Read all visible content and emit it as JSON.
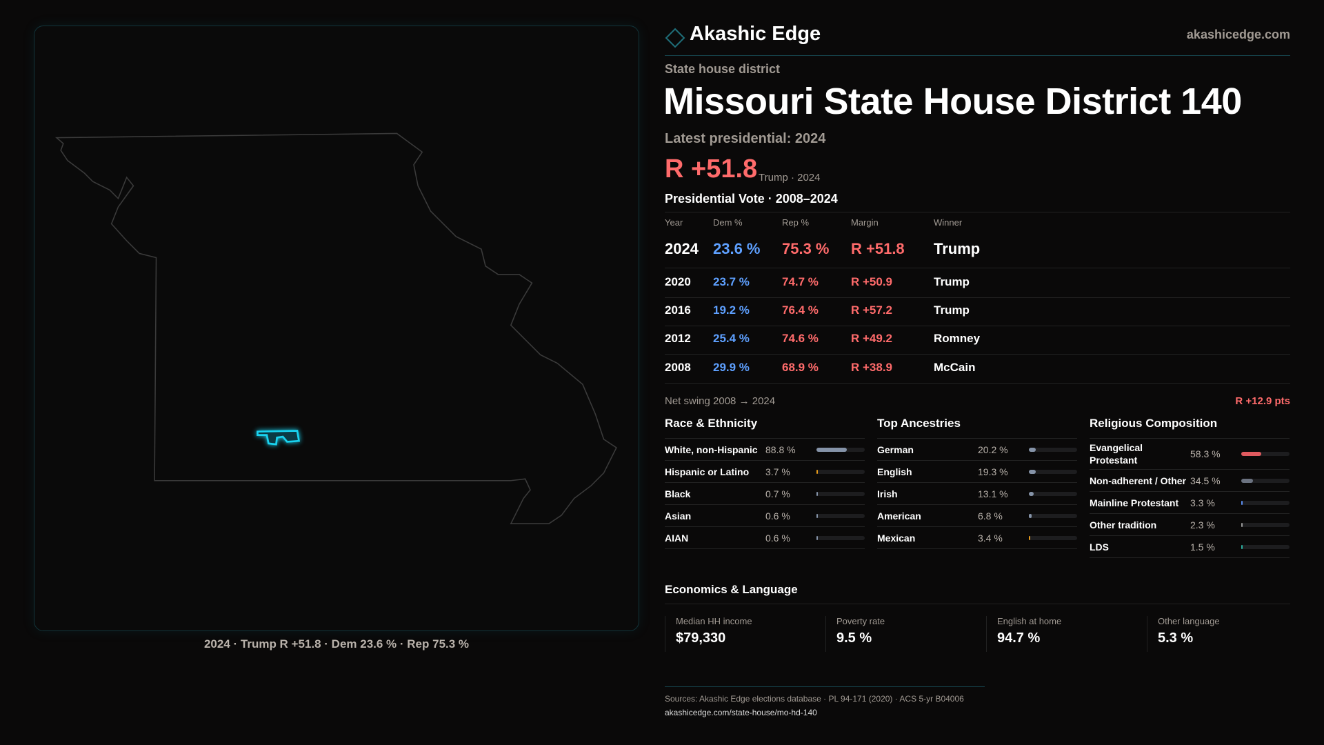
{
  "brand": {
    "name": "Akashic Edge",
    "site": "akashicedge.com",
    "accent": "#2bb6c9"
  },
  "header": {
    "kicker": "State house district",
    "title": "Missouri State House District 140",
    "latest_label": "Latest presidential: 2024",
    "margin": "R +51.8",
    "margin_sub": "Trump · 2024",
    "table_title": "Presidential Vote · 2008–2024"
  },
  "map": {
    "caption": "2024 · Trump R +51.8 · Dem 23.6 % · Rep 75.3 %",
    "district_color": "#19d3f0"
  },
  "table": {
    "headers": [
      "Year",
      "Dem %",
      "Rep %",
      "Margin",
      "Winner"
    ],
    "rows": [
      [
        "2024",
        "23.6 %",
        "75.3 %",
        "R +51.8",
        "Trump"
      ],
      [
        "2020",
        "23.7 %",
        "74.7 %",
        "R +50.9",
        "Trump"
      ],
      [
        "2016",
        "19.2 %",
        "76.4 %",
        "R +57.2",
        "Trump"
      ],
      [
        "2012",
        "25.4 %",
        "74.6 %",
        "R +49.2",
        "Romney"
      ],
      [
        "2008",
        "29.9 %",
        "68.9 %",
        "R +38.9",
        "McCain"
      ]
    ]
  },
  "swing": {
    "label": "Net swing 2008 → 2024",
    "value": "R +12.9 pts"
  },
  "sections": [
    {
      "title": "Race & Ethnicity",
      "rows": [
        {
          "label": "White, non-Hispanic",
          "pct": "88.8 %",
          "value": 88.8,
          "color": "#8593a8"
        },
        {
          "label": "Hispanic or Latino",
          "pct": "3.7 %",
          "value": 3.7,
          "color": "#e59a1c"
        },
        {
          "label": "Black",
          "pct": "0.7 %",
          "value": 0.7,
          "color": "#8593a8"
        },
        {
          "label": "Asian",
          "pct": "0.6 %",
          "value": 0.6,
          "color": "#8593a8"
        },
        {
          "label": "AIAN",
          "pct": "0.6 %",
          "value": 0.6,
          "color": "#8593a8"
        }
      ]
    },
    {
      "title": "Top Ancestries",
      "rows": [
        {
          "label": "German",
          "pct": "20.2 %",
          "value": 20.2,
          "color": "#8593a8"
        },
        {
          "label": "English",
          "pct": "19.3 %",
          "value": 19.3,
          "color": "#8593a8"
        },
        {
          "label": "Irish",
          "pct": "13.1 %",
          "value": 13.1,
          "color": "#8593a8"
        },
        {
          "label": "American",
          "pct": "6.8 %",
          "value": 6.8,
          "color": "#8593a8"
        },
        {
          "label": "Mexican",
          "pct": "3.4 %",
          "value": 3.4,
          "color": "#e59a1c"
        }
      ]
    },
    {
      "title": "Religious Composition",
      "rows": [
        {
          "label": "Evangelical Protestant",
          "pct": "58.3 %",
          "value": 58.3,
          "color": "#e05a5f"
        },
        {
          "label": "Non-adherent / Other",
          "pct": "34.5 %",
          "value": 34.5,
          "color": "#6b7280"
        },
        {
          "label": "Mainline Protestant",
          "pct": "3.3 %",
          "value": 3.3,
          "color": "#5b8def"
        },
        {
          "label": "Other tradition",
          "pct": "2.3 %",
          "value": 2.3,
          "color": "#9a9a9a"
        },
        {
          "label": "LDS",
          "pct": "1.5 %",
          "value": 1.5,
          "color": "#2bb0a0"
        }
      ]
    }
  ],
  "economics": {
    "title": "Economics & Language",
    "cards": [
      {
        "label": "Median HH income",
        "value": "$79,330"
      },
      {
        "label": "Poverty rate",
        "value": "9.5 %"
      },
      {
        "label": "English at home",
        "value": "94.7 %"
      },
      {
        "label": "Other language",
        "value": "5.3 %"
      }
    ]
  },
  "footer": {
    "sources": "Sources: Akashic Edge elections database · PL 94-171 (2020) · ACS 5-yr B04006",
    "link": "akashicedge.com/state-house/mo-hd-140"
  }
}
